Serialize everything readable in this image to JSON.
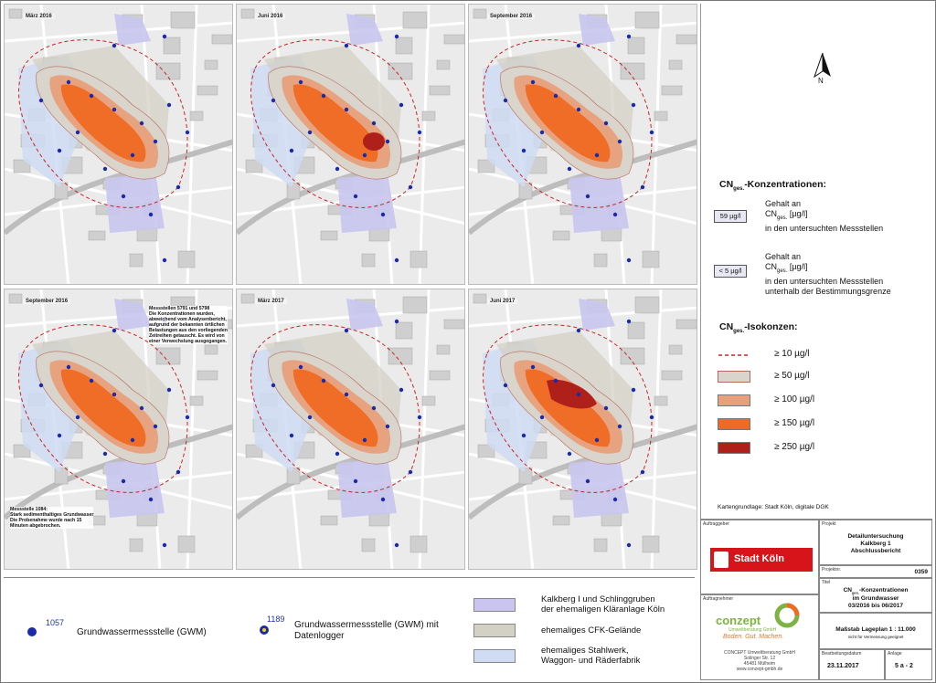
{
  "panels": [
    {
      "title": "März 2016"
    },
    {
      "title": "Juni 2016"
    },
    {
      "title": "September 2016"
    },
    {
      "title": "September 2016"
    },
    {
      "title": "März 2017"
    },
    {
      "title": "Juni 2017"
    }
  ],
  "notes": {
    "panel4_top": "Messstellen 5791 und 5798\nDie Konzentrationen wurden,\nabweichend vom Analysenbericht,\naufgrund der bekannten örtlichen\nBelastungen aus den vorliegenden\nZeitreihen getauscht. Es wird von\neiner Verwechslung ausgegangen.",
    "panel4_bottom": "Messstelle 1084:\nStark sedimenthaltiges Grundwasser\nDie Probenahme wurde nach 15\nMinuten abgebrochen."
  },
  "legend": {
    "north_label": "N",
    "cn_heading_main": "CN",
    "cn_heading_sub": "ges.",
    "cn_heading_suffix": "-Konzentrationen:",
    "value_example": "59 µg/l",
    "value_text_1": "Gehalt an",
    "value_text_2_main": "CN",
    "value_text_2_sub": "ges.",
    "value_text_2_suffix": " [µg/l]",
    "value_text_3": "in den untersuchten Messstellen",
    "below_example": "< 5 µg/l",
    "below_text_1": "Gehalt an",
    "below_text_2_main": "CN",
    "below_text_2_sub": "ges.",
    "below_text_2_suffix": " [µg/l]",
    "below_text_3": "in den untersuchten Messstellen",
    "below_text_4": "unterhalb der Bestimmungsgrenze",
    "iso_heading_main": "CN",
    "iso_heading_sub": "ges.",
    "iso_heading_suffix": "-Isokonzen:",
    "iso_classes": [
      {
        "label": "≥ 10 µg/l",
        "color": "#cc2222",
        "style": "dashed"
      },
      {
        "label": "≥ 50 µg/l",
        "color": "#d9d4cc",
        "style": "fill"
      },
      {
        "label": "≥ 100 µg/l",
        "color": "#e8a07a",
        "style": "fill"
      },
      {
        "label": "≥ 150 µg/l",
        "color": "#ef6a22",
        "style": "fill"
      },
      {
        "label": "≥ 250 µg/l",
        "color": "#b0201a",
        "style": "fill"
      }
    ],
    "basemap_credit": "Kartengrundlage: Stadt Köln, digitale DGK"
  },
  "bottom_legend": {
    "gwm_number": "1057",
    "gwm_label": "Grundwassermessstelle (GWM)",
    "logger_number": "1189",
    "logger_label_1": "Grundwassermessstelle (GWM) mit",
    "logger_label_2": "Datenlogger",
    "areas": [
      {
        "line1": "Kalkberg I und Schlinggruben",
        "line2": "der ehemaligen Kläranlage Köln",
        "color": "#c9c5ee"
      },
      {
        "line1": "ehemaliges CFK-Gelände",
        "line2": "",
        "color": "#d3d0c4"
      },
      {
        "line1": "ehemaliges Stahlwerk,",
        "line2": "Waggon- und Räderfabrik",
        "color": "#cfdcf3"
      }
    ]
  },
  "title_block": {
    "client_label": "Auftraggeber",
    "client_name": "Stadt Köln",
    "project_label": "Projekt",
    "project_1": "Detailuntersuchung",
    "project_2": "Kalkberg 1",
    "project_3": "Abschlussbericht",
    "project_no_label": "Projektnr.",
    "project_no": "0359",
    "title_label": "Titel",
    "title_1_main": "CN",
    "title_1_sub": "ges.",
    "title_1_suffix": "-Konzentrationen",
    "title_2": "im Grundwasser",
    "title_3": "03/2016 bis 06/2017",
    "contractor_label": "Auftragnehmer",
    "contractor_name": "conzept",
    "contractor_sub": "Umweltberatung GmbH",
    "contractor_slogan": "Boden. Gut. Machen.",
    "contractor_addr_1": "CONCEPT Umweltberatung GmbH",
    "contractor_addr_2": "Solinger Str. 12",
    "contractor_addr_3": "45481 Mülheim",
    "contractor_addr_4": "www.conzept-gmbh.de",
    "scale_1": "Maßstab Lageplan 1 : 11.000",
    "scale_2": "nicht für Vermessung geeignet",
    "date_label": "Bearbeitungsdatum",
    "date": "23.11.2017",
    "annex_label": "Anlage",
    "annex": "5 a - 2"
  }
}
